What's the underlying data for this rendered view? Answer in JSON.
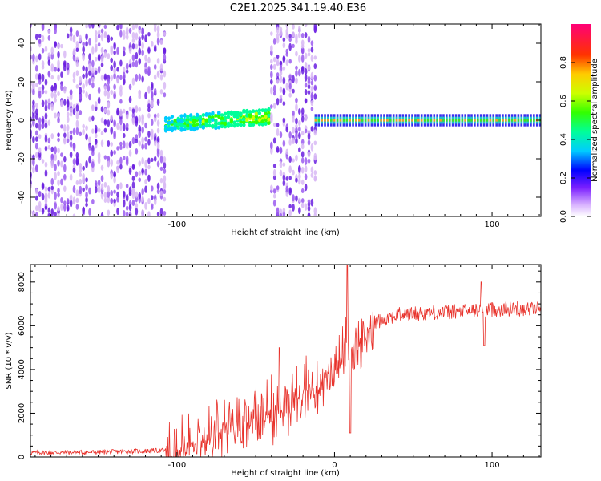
{
  "title": "C2E1.2025.341.19.40.E36",
  "colors": {
    "snr_line": "#e8322b",
    "spectrogram_low": "#d8b8f4",
    "spectrogram_mid": "#6a1ee0"
  },
  "chart_data": [
    {
      "type": "heatmap",
      "name": "spectrogram",
      "xlabel": "Height of straight line (km)",
      "ylabel": "Frequency (Hz)",
      "xlim": [
        -193,
        131
      ],
      "ylim": [
        -50,
        50
      ],
      "xticks": [
        -100,
        0,
        100
      ],
      "xtick_labels": [
        "-100",
        "",
        "100"
      ],
      "yticks": [
        40,
        20,
        0,
        -20,
        -40
      ],
      "ytick_labels": [
        "40",
        "20",
        "0",
        "-20",
        "-40"
      ],
      "regions": [
        {
          "x_start": -193,
          "x_end": -107,
          "kind": "noise",
          "freq_range": [
            -50,
            50
          ]
        },
        {
          "x_start": -107,
          "x_end": -40,
          "kind": "band",
          "center_start": -2,
          "center_end": 2,
          "half_width": 4
        },
        {
          "x_start": -40,
          "x_end": -12,
          "kind": "noise",
          "freq_range": [
            -50,
            50
          ]
        },
        {
          "x_start": -12,
          "x_end": 131,
          "kind": "line",
          "center": 0,
          "half_width": 2
        }
      ],
      "colorbar": {
        "label": "Normalized spectral amplitude",
        "range": [
          0,
          1
        ],
        "ticks": [
          0.0,
          0.2,
          0.4,
          0.6,
          0.8
        ],
        "tick_labels": [
          "0.0",
          "0.2",
          "0.4",
          "0.6",
          "0.8"
        ]
      }
    },
    {
      "type": "line",
      "name": "snr",
      "xlabel": "Height of straight line (km)",
      "ylabel": "SNR (10 * v/v)",
      "xlim": [
        -193,
        131
      ],
      "ylim": [
        0,
        8800
      ],
      "xticks": [
        -100,
        0,
        100
      ],
      "xtick_labels": [
        "-100",
        "0",
        "100"
      ],
      "yticks": [
        0,
        2000,
        4000,
        6000,
        8000
      ],
      "ytick_labels": [
        "0",
        "2000",
        "4000",
        "6000",
        "8000"
      ],
      "trend": {
        "x": [
          -193,
          -150,
          -107,
          -90,
          -70,
          -50,
          -30,
          -10,
          0,
          10,
          20,
          30,
          40,
          60,
          80,
          100,
          131
        ],
        "y": [
          200,
          220,
          300,
          900,
          1600,
          2100,
          2800,
          3700,
          4400,
          5300,
          5900,
          6300,
          6500,
          6600,
          6650,
          6750,
          6800
        ]
      },
      "spikes": [
        {
          "x": -35,
          "y": 5000
        },
        {
          "x": 8,
          "y": 8800
        },
        {
          "x": 10,
          "y": 1100
        },
        {
          "x": 93,
          "y": 8000
        },
        {
          "x": 95,
          "y": 5100
        }
      ]
    }
  ]
}
